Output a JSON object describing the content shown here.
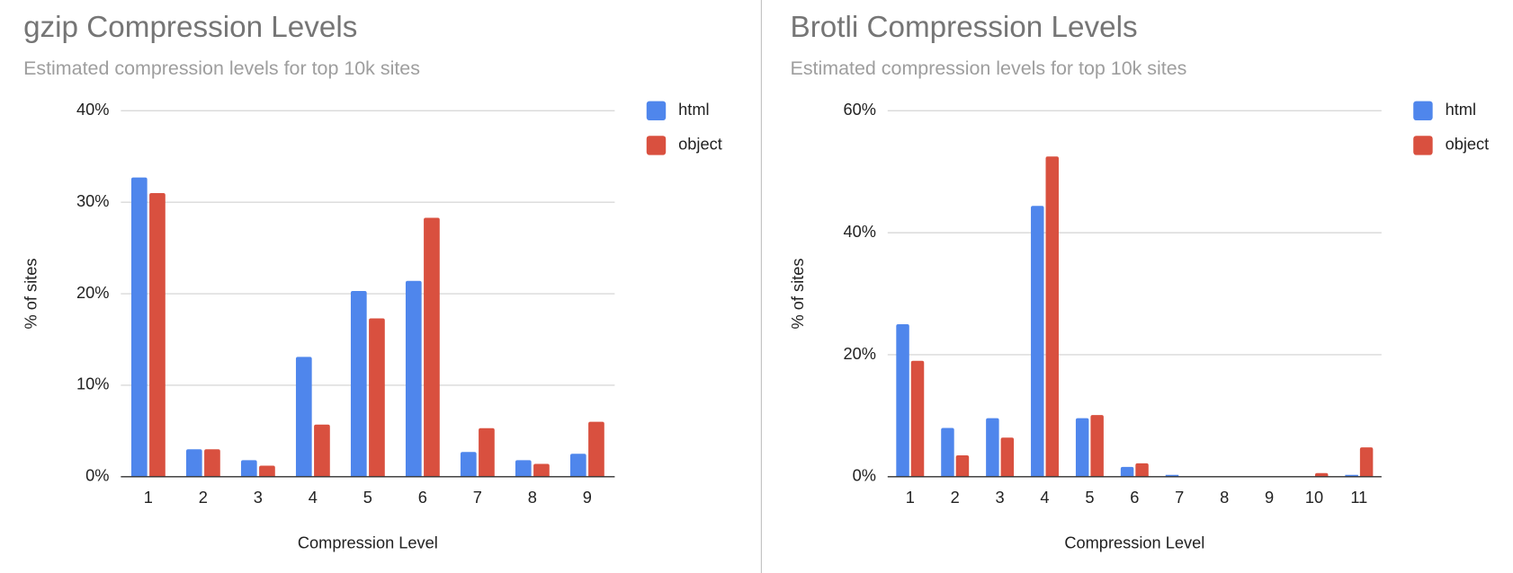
{
  "chart_data": [
    {
      "type": "bar",
      "title": "gzip Compression Levels",
      "subtitle": "Estimated compression levels for top 10k sites",
      "x_label": "Compression Level",
      "y_label": "% of sites",
      "categories": [
        "1",
        "2",
        "3",
        "4",
        "5",
        "6",
        "7",
        "8",
        "9"
      ],
      "series": [
        {
          "name": "html",
          "color": "#4f86ec",
          "values": [
            32.7,
            3.0,
            1.8,
            13.1,
            20.3,
            21.4,
            2.7,
            1.8,
            2.5
          ]
        },
        {
          "name": "object",
          "color": "#d9503f",
          "values": [
            31.0,
            3.0,
            1.2,
            5.7,
            17.3,
            28.3,
            5.3,
            1.4,
            6.0
          ]
        }
      ],
      "ylim": [
        0,
        40
      ],
      "yticks": [
        {
          "value": 0,
          "label": "0%"
        },
        {
          "value": 10,
          "label": "10%"
        },
        {
          "value": 20,
          "label": "20%"
        },
        {
          "value": 30,
          "label": "30%"
        },
        {
          "value": 40,
          "label": "40%"
        }
      ],
      "grid": true,
      "legend": "right"
    },
    {
      "type": "bar",
      "title": "Brotli Compression Levels",
      "subtitle": "Estimated compression levels for top 10k sites",
      "x_label": "Compression Level",
      "y_label": "% of sites",
      "categories": [
        "1",
        "2",
        "3",
        "4",
        "5",
        "6",
        "7",
        "8",
        "9",
        "10",
        "11"
      ],
      "series": [
        {
          "name": "html",
          "color": "#4f86ec",
          "values": [
            25.0,
            8.0,
            9.6,
            44.4,
            9.6,
            1.6,
            0.3,
            0,
            0,
            0,
            0.3
          ]
        },
        {
          "name": "object",
          "color": "#d9503f",
          "values": [
            19.0,
            3.5,
            6.4,
            52.5,
            10.1,
            2.2,
            0,
            0,
            0,
            0.6,
            4.8
          ]
        }
      ],
      "ylim": [
        0,
        60
      ],
      "yticks": [
        {
          "value": 0,
          "label": "0%"
        },
        {
          "value": 20,
          "label": "20%"
        },
        {
          "value": 40,
          "label": "40%"
        },
        {
          "value": 60,
          "label": "60%"
        }
      ],
      "grid": true,
      "legend": "right"
    }
  ]
}
